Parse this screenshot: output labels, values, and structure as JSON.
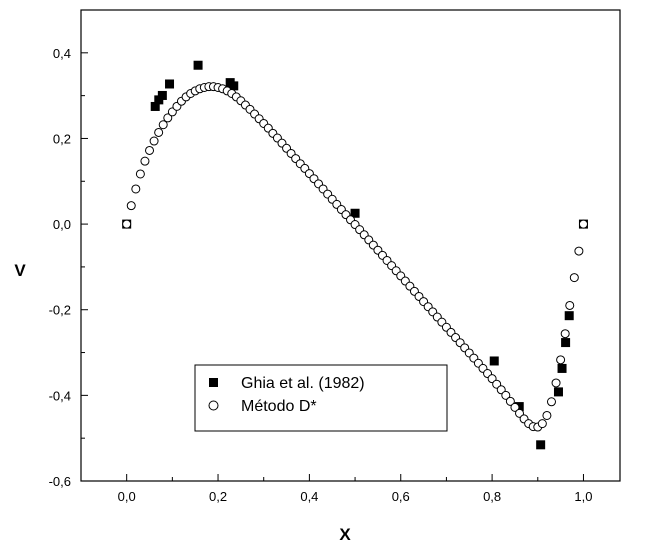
{
  "chart_data": {
    "type": "scatter",
    "title": "",
    "xlabel": "X",
    "ylabel": "V",
    "xlim": [
      -0.1,
      1.08
    ],
    "ylim": [
      -0.6,
      0.5
    ],
    "x_ticks": [
      0.0,
      0.2,
      0.4,
      0.6,
      0.8,
      1.0
    ],
    "x_tick_labels": [
      "0,0",
      "0,2",
      "0,4",
      "0,6",
      "0,8",
      "1,0"
    ],
    "y_ticks": [
      -0.6,
      -0.4,
      -0.2,
      0.0,
      0.2,
      0.4
    ],
    "y_tick_labels": [
      "-0,6",
      "-0,4",
      "-0,2",
      "0,0",
      "0,2",
      "0,4"
    ],
    "grid": false,
    "legend_position": "bottom-center",
    "series": [
      {
        "name": "Ghia et al. (1982)",
        "marker": "filled-square",
        "color": "#000000",
        "points": [
          [
            0.0,
            0.0
          ],
          [
            0.0625,
            0.2747
          ],
          [
            0.0703,
            0.2901
          ],
          [
            0.0781,
            0.3004
          ],
          [
            0.0938,
            0.3272
          ],
          [
            0.1563,
            0.371
          ],
          [
            0.2266,
            0.3304
          ],
          [
            0.2344,
            0.3228
          ],
          [
            0.5,
            0.0253
          ],
          [
            0.8047,
            -0.3197
          ],
          [
            0.8594,
            -0.4262
          ],
          [
            0.9063,
            -0.5155
          ],
          [
            0.9453,
            -0.3919
          ],
          [
            0.9531,
            -0.3371
          ],
          [
            0.9609,
            -0.2767
          ],
          [
            0.9688,
            -0.2139
          ],
          [
            1.0,
            0.0
          ]
        ]
      },
      {
        "name": "Método D*",
        "marker": "open-circle",
        "color": "#000000",
        "points": [
          [
            0.0,
            0.0
          ],
          [
            0.01,
            0.043
          ],
          [
            0.02,
            0.082
          ],
          [
            0.03,
            0.117
          ],
          [
            0.04,
            0.147
          ],
          [
            0.05,
            0.172
          ],
          [
            0.06,
            0.194
          ],
          [
            0.07,
            0.214
          ],
          [
            0.08,
            0.232
          ],
          [
            0.09,
            0.248
          ],
          [
            0.1,
            0.262
          ],
          [
            0.11,
            0.275
          ],
          [
            0.12,
            0.287
          ],
          [
            0.13,
            0.297
          ],
          [
            0.14,
            0.305
          ],
          [
            0.15,
            0.311
          ],
          [
            0.16,
            0.316
          ],
          [
            0.17,
            0.319
          ],
          [
            0.18,
            0.321
          ],
          [
            0.19,
            0.321
          ],
          [
            0.2,
            0.319
          ],
          [
            0.21,
            0.316
          ],
          [
            0.22,
            0.311
          ],
          [
            0.23,
            0.305
          ],
          [
            0.24,
            0.297
          ],
          [
            0.25,
            0.288
          ],
          [
            0.26,
            0.278
          ],
          [
            0.27,
            0.268
          ],
          [
            0.28,
            0.257
          ],
          [
            0.29,
            0.246
          ],
          [
            0.3,
            0.235
          ],
          [
            0.31,
            0.224
          ],
          [
            0.32,
            0.212
          ],
          [
            0.33,
            0.201
          ],
          [
            0.34,
            0.189
          ],
          [
            0.35,
            0.177
          ],
          [
            0.36,
            0.165
          ],
          [
            0.37,
            0.153
          ],
          [
            0.38,
            0.141
          ],
          [
            0.39,
            0.13
          ],
          [
            0.4,
            0.118
          ],
          [
            0.41,
            0.106
          ],
          [
            0.42,
            0.094
          ],
          [
            0.43,
            0.082
          ],
          [
            0.44,
            0.07
          ],
          [
            0.45,
            0.058
          ],
          [
            0.46,
            0.046
          ],
          [
            0.47,
            0.034
          ],
          [
            0.48,
            0.022
          ],
          [
            0.49,
            0.01
          ],
          [
            0.5,
            -0.001
          ],
          [
            0.51,
            -0.013
          ],
          [
            0.52,
            -0.025
          ],
          [
            0.53,
            -0.037
          ],
          [
            0.54,
            -0.049
          ],
          [
            0.55,
            -0.061
          ],
          [
            0.56,
            -0.073
          ],
          [
            0.57,
            -0.085
          ],
          [
            0.58,
            -0.097
          ],
          [
            0.59,
            -0.109
          ],
          [
            0.6,
            -0.121
          ],
          [
            0.61,
            -0.133
          ],
          [
            0.62,
            -0.145
          ],
          [
            0.63,
            -0.157
          ],
          [
            0.64,
            -0.169
          ],
          [
            0.65,
            -0.181
          ],
          [
            0.66,
            -0.193
          ],
          [
            0.67,
            -0.205
          ],
          [
            0.68,
            -0.217
          ],
          [
            0.69,
            -0.229
          ],
          [
            0.7,
            -0.241
          ],
          [
            0.71,
            -0.253
          ],
          [
            0.72,
            -0.265
          ],
          [
            0.73,
            -0.277
          ],
          [
            0.74,
            -0.289
          ],
          [
            0.75,
            -0.301
          ],
          [
            0.76,
            -0.313
          ],
          [
            0.77,
            -0.325
          ],
          [
            0.78,
            -0.337
          ],
          [
            0.79,
            -0.349
          ],
          [
            0.8,
            -0.361
          ],
          [
            0.81,
            -0.374
          ],
          [
            0.82,
            -0.387
          ],
          [
            0.83,
            -0.4
          ],
          [
            0.84,
            -0.414
          ],
          [
            0.85,
            -0.428
          ],
          [
            0.86,
            -0.442
          ],
          [
            0.87,
            -0.455
          ],
          [
            0.88,
            -0.466
          ],
          [
            0.89,
            -0.473
          ],
          [
            0.9,
            -0.474
          ],
          [
            0.91,
            -0.466
          ],
          [
            0.92,
            -0.447
          ],
          [
            0.93,
            -0.415
          ],
          [
            0.94,
            -0.371
          ],
          [
            0.95,
            -0.317
          ],
          [
            0.96,
            -0.256
          ],
          [
            0.97,
            -0.19
          ],
          [
            0.98,
            -0.125
          ],
          [
            0.99,
            -0.063
          ],
          [
            1.0,
            0.0
          ]
        ]
      }
    ]
  }
}
